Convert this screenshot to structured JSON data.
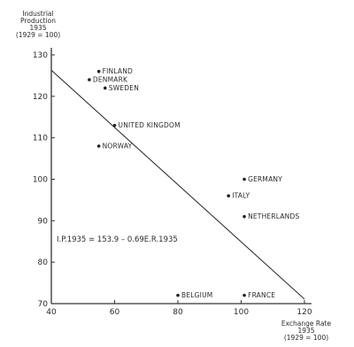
{
  "chart_data": {
    "type": "scatter",
    "ylabel_lines": [
      "Industrial",
      "Production",
      "1935",
      "(1929 = 100)"
    ],
    "xlabel_lines": [
      "Exchange Rate",
      "1935",
      "(1929 = 100)"
    ],
    "xlim": [
      40,
      120
    ],
    "ylim": [
      70,
      130
    ],
    "x_ticks": [
      40,
      60,
      80,
      100,
      120
    ],
    "y_ticks": [
      70,
      80,
      90,
      100,
      110,
      120,
      130
    ],
    "points": [
      {
        "label": "FINLAND",
        "x": 55,
        "y": 126
      },
      {
        "label": "DENMARK",
        "x": 52,
        "y": 124
      },
      {
        "label": "SWEDEN",
        "x": 57,
        "y": 122
      },
      {
        "label": "UNITED KINGDOM",
        "x": 60,
        "y": 113
      },
      {
        "label": "NORWAY",
        "x": 55,
        "y": 108
      },
      {
        "label": "GERMANY",
        "x": 101,
        "y": 100
      },
      {
        "label": "ITALY",
        "x": 96,
        "y": 96
      },
      {
        "label": "NETHERLANDS",
        "x": 101,
        "y": 91
      },
      {
        "label": "BELGIUM",
        "x": 80,
        "y": 72
      },
      {
        "label": "FRANCE",
        "x": 101,
        "y": 72
      }
    ],
    "regression": {
      "intercept": 153.9,
      "slope": -0.69,
      "x_range": [
        40,
        120
      ]
    },
    "equation": "I.P.1935 = 153.9 – 0.69E.R.1935"
  }
}
